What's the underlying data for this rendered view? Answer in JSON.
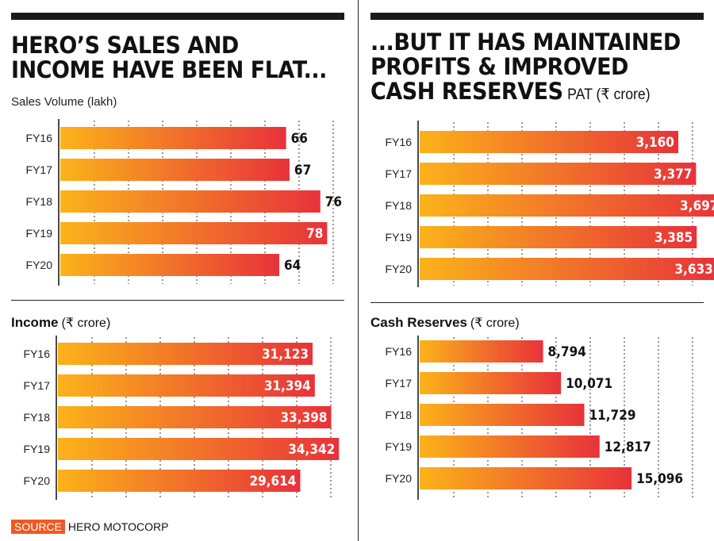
{
  "left_panel": {
    "headline_line1": "HERO’S SALES AND",
    "headline_line2": "INCOME HAVE BEEN FLAT...",
    "subtitle": "Sales Volume (lakh)"
  },
  "right_panel": {
    "headline_line1": "...BUT IT HAS MAINTAINED",
    "headline_line2": "PROFITS & IMPROVED",
    "headline_line3": "CASH RESERVES",
    "headline_unit": "PAT (₹ crore)"
  },
  "income_section": {
    "title": "Income",
    "unit": "(₹ crore)"
  },
  "cash_section": {
    "title": "Cash Reserves",
    "unit": "(₹ crore)"
  },
  "source": {
    "tag": "SOURCE",
    "text": "HERO MOTOCORP"
  },
  "colors": {
    "bar_start": "#fbb31a",
    "bar_end": "#e8323a",
    "label_light": "#ffffff",
    "label_dark": "#111111",
    "grid": "#555555",
    "source_tag": "#ef5a24"
  },
  "chart_data": [
    {
      "id": "sales",
      "type": "bar",
      "orientation": "horizontal",
      "title": "Sales Volume (lakh)",
      "categories": [
        "FY16",
        "FY17",
        "FY18",
        "FY19",
        "FY20"
      ],
      "values": [
        66,
        67,
        76,
        78,
        64
      ],
      "labels": [
        "66",
        "67",
        "76",
        "78",
        "64"
      ],
      "label_inside": [
        false,
        false,
        false,
        true,
        false
      ],
      "xlim": [
        0,
        80
      ]
    },
    {
      "id": "pat",
      "type": "bar",
      "orientation": "horizontal",
      "title": "PAT (₹ crore)",
      "categories": [
        "FY16",
        "FY17",
        "FY18",
        "FY19",
        "FY20"
      ],
      "values": [
        3160,
        3377,
        3697,
        3385,
        3633
      ],
      "labels": [
        "3,160",
        "3,377",
        "3,697",
        "3,385",
        "3,633"
      ],
      "label_inside": [
        true,
        true,
        true,
        true,
        true
      ],
      "xlim": [
        0,
        3800
      ]
    },
    {
      "id": "income",
      "type": "bar",
      "orientation": "horizontal",
      "title": "Income (₹ crore)",
      "categories": [
        "FY16",
        "FY17",
        "FY18",
        "FY19",
        "FY20"
      ],
      "values": [
        31123,
        31394,
        33398,
        34342,
        29614
      ],
      "labels": [
        "31,123",
        "31,394",
        "33,398",
        "34,342",
        "29,614"
      ],
      "label_inside": [
        true,
        true,
        true,
        true,
        true
      ],
      "xlim": [
        0,
        38000
      ]
    },
    {
      "id": "cash",
      "type": "bar",
      "orientation": "horizontal",
      "title": "Cash Reserves (₹ crore)",
      "categories": [
        "FY16",
        "FY17",
        "FY18",
        "FY19",
        "FY20"
      ],
      "values": [
        8794,
        10071,
        11729,
        12817,
        15096
      ],
      "labels": [
        "8,794",
        "10,071",
        "11,729",
        "12,817",
        "15,096"
      ],
      "label_inside": [
        false,
        false,
        false,
        false,
        false
      ],
      "xlim": [
        0,
        19500
      ]
    }
  ]
}
